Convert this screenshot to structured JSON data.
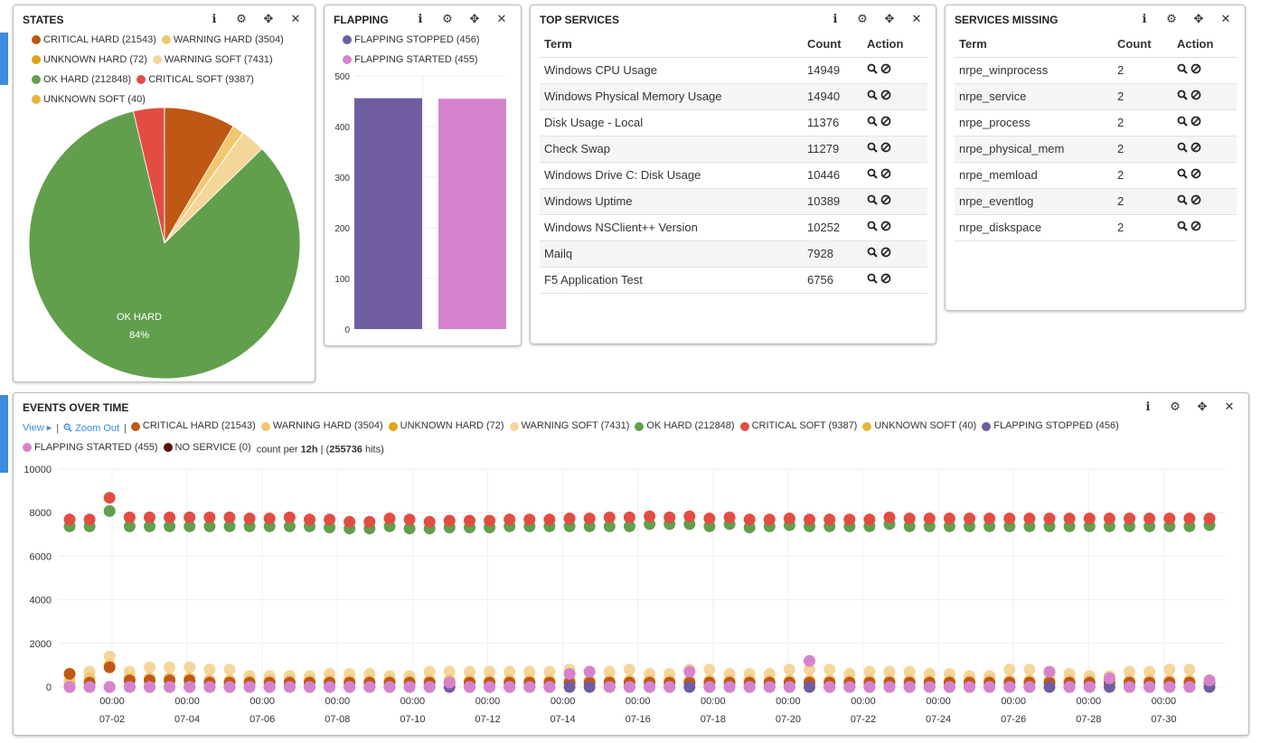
{
  "colors": {
    "critical_hard": "#bf5815",
    "warning_hard": "#f2c76f",
    "unknown_hard": "#e2a412",
    "warning_soft": "#f4d69a",
    "ok_hard": "#629f4d",
    "critical_soft": "#e24d42",
    "unknown_soft": "#e8b53b",
    "flapping_stopped": "#705da0",
    "flapping_started": "#d683ce",
    "no_service": "#58140c"
  },
  "states": {
    "title": "STATES",
    "legend": [
      {
        "label": "CRITICAL HARD (21543)",
        "color": "#bf5815"
      },
      {
        "label": "WARNING HARD (3504)",
        "color": "#f2c76f"
      },
      {
        "label": "UNKNOWN HARD (72)",
        "color": "#e2a412"
      },
      {
        "label": "WARNING SOFT (7431)",
        "color": "#f4d69a"
      },
      {
        "label": "OK HARD (212848)",
        "color": "#629f4d"
      },
      {
        "label": "CRITICAL SOFT (9387)",
        "color": "#e24d42"
      },
      {
        "label": "UNKNOWN SOFT (40)",
        "color": "#e8b53b"
      }
    ],
    "pie_label": "OK HARD",
    "pie_pct": "84%"
  },
  "flapping": {
    "title": "FLAPPING",
    "legend": [
      {
        "label": "FLAPPING STOPPED (456)",
        "color": "#705da0"
      },
      {
        "label": "FLAPPING STARTED (455)",
        "color": "#d683ce"
      }
    ]
  },
  "top_services": {
    "title": "TOP SERVICES",
    "columns": [
      "Term",
      "Count",
      "Action"
    ],
    "rows": [
      [
        "Windows CPU Usage",
        "14949"
      ],
      [
        "Windows Physical Memory Usage",
        "14940"
      ],
      [
        "Disk Usage - Local",
        "11376"
      ],
      [
        "Check Swap",
        "11279"
      ],
      [
        "Windows Drive C: Disk Usage",
        "10446"
      ],
      [
        "Windows Uptime",
        "10389"
      ],
      [
        "Windows NSClient++ Version",
        "10252"
      ],
      [
        "Mailq",
        "7928"
      ],
      [
        "F5 Application Test",
        "6756"
      ]
    ]
  },
  "services_missing": {
    "title": "SERVICES MISSING",
    "columns": [
      "Term",
      "Count",
      "Action"
    ],
    "rows": [
      [
        "nrpe_winprocess",
        "2"
      ],
      [
        "nrpe_service",
        "2"
      ],
      [
        "nrpe_process",
        "2"
      ],
      [
        "nrpe_physical_mem",
        "2"
      ],
      [
        "nrpe_memload",
        "2"
      ],
      [
        "nrpe_eventlog",
        "2"
      ],
      [
        "nrpe_diskspace",
        "2"
      ]
    ]
  },
  "events": {
    "title": "EVENTS OVER TIME",
    "view_label": "View ▸",
    "zoom_out_label": "Zoom Out",
    "legend": [
      {
        "label": "CRITICAL HARD (21543)",
        "color": "#bf5815"
      },
      {
        "label": "WARNING HARD (3504)",
        "color": "#f2c76f"
      },
      {
        "label": "UNKNOWN HARD (72)",
        "color": "#e2a412"
      },
      {
        "label": "WARNING SOFT (7431)",
        "color": "#f4d69a"
      },
      {
        "label": "OK HARD (212848)",
        "color": "#629f4d"
      },
      {
        "label": "CRITICAL SOFT (9387)",
        "color": "#e24d42"
      },
      {
        "label": "UNKNOWN SOFT (40)",
        "color": "#e8b53b"
      },
      {
        "label": "FLAPPING STOPPED (456)",
        "color": "#705da0"
      },
      {
        "label": "FLAPPING STARTED (455)",
        "color": "#d683ce"
      },
      {
        "label": "NO SERVICE (0)",
        "color": "#58140c"
      }
    ],
    "count_per_prefix": "count per ",
    "interval": "12h",
    "hits_prefix": " | (",
    "hits": "255736",
    "hits_suffix": " hits)"
  },
  "chart_data": [
    {
      "type": "pie",
      "categories": [
        "CRITICAL HARD",
        "WARNING HARD",
        "UNKNOWN HARD",
        "WARNING SOFT",
        "OK HARD",
        "CRITICAL SOFT",
        "UNKNOWN SOFT"
      ],
      "values": [
        21543,
        3504,
        72,
        7431,
        212848,
        9387,
        40
      ],
      "colors": [
        "#bf5815",
        "#f2c76f",
        "#e2a412",
        "#f4d69a",
        "#629f4d",
        "#e24d42",
        "#e8b53b"
      ]
    },
    {
      "type": "bar",
      "categories": [
        "FLAPPING STOPPED",
        "FLAPPING STARTED"
      ],
      "values": [
        456,
        455
      ],
      "colors": [
        "#705da0",
        "#d683ce"
      ],
      "ylim": [
        0,
        500
      ],
      "yticks": [
        0,
        100,
        200,
        300,
        400,
        500
      ]
    },
    {
      "type": "scatter",
      "x_labels": [
        "07-02",
        "07-04",
        "07-06",
        "07-08",
        "07-10",
        "07-12",
        "07-14",
        "07-16",
        "07-18",
        "07-20",
        "07-22",
        "07-24",
        "07-26",
        "07-28",
        "07-30"
      ],
      "x_time_label": "00:00",
      "ylim": [
        0,
        10000
      ],
      "yticks": [
        0,
        2000,
        4000,
        6000,
        8000,
        10000
      ],
      "grid": true,
      "points_per_series": 58,
      "series": [
        {
          "name": "OK HARD",
          "color": "#629f4d",
          "values": [
            7500,
            7500,
            8200,
            7500,
            7500,
            7500,
            7500,
            7500,
            7500,
            7500,
            7500,
            7500,
            7500,
            7450,
            7400,
            7400,
            7500,
            7400,
            7400,
            7450,
            7450,
            7450,
            7500,
            7500,
            7500,
            7500,
            7500,
            7500,
            7500,
            7600,
            7600,
            7600,
            7500,
            7600,
            7450,
            7500,
            7550,
            7500,
            7500,
            7500,
            7500,
            7600,
            7500,
            7500,
            7500,
            7500,
            7500,
            7500,
            7500,
            7500,
            7500,
            7500,
            7500,
            7500,
            7500,
            7500,
            7500,
            7550
          ]
        },
        {
          "name": "CRITICAL SOFT",
          "color": "#e24d42",
          "values": [
            7600,
            7600,
            8600,
            7700,
            7700,
            7700,
            7700,
            7700,
            7700,
            7650,
            7650,
            7700,
            7600,
            7600,
            7500,
            7500,
            7650,
            7600,
            7500,
            7550,
            7550,
            7550,
            7600,
            7600,
            7600,
            7650,
            7650,
            7700,
            7700,
            7750,
            7700,
            7750,
            7650,
            7700,
            7600,
            7600,
            7650,
            7600,
            7600,
            7600,
            7600,
            7700,
            7650,
            7650,
            7650,
            7650,
            7650,
            7650,
            7650,
            7650,
            7650,
            7650,
            7650,
            7650,
            7650,
            7650,
            7650,
            7650
          ]
        },
        {
          "name": "WARNING SOFT",
          "color": "#f4d69a",
          "values": [
            300,
            700,
            1400,
            700,
            900,
            900,
            900,
            800,
            800,
            500,
            500,
            500,
            500,
            600,
            600,
            600,
            500,
            500,
            700,
            700,
            700,
            700,
            700,
            700,
            700,
            800,
            700,
            700,
            800,
            600,
            600,
            800,
            800,
            600,
            600,
            600,
            800,
            800,
            800,
            600,
            700,
            700,
            700,
            600,
            600,
            500,
            500,
            800,
            800,
            600,
            600,
            500,
            500,
            700,
            700,
            800,
            800,
            300
          ]
        },
        {
          "name": "CRITICAL HARD",
          "color": "#bf5815",
          "values": [
            600,
            200,
            900,
            300,
            300,
            300,
            300,
            200,
            200,
            200,
            200,
            200,
            200,
            200,
            200,
            200,
            200,
            200,
            200,
            200,
            200,
            200,
            200,
            200,
            200,
            200,
            200,
            200,
            200,
            200,
            200,
            200,
            200,
            200,
            200,
            200,
            200,
            200,
            200,
            200,
            200,
            200,
            200,
            200,
            200,
            200,
            200,
            200,
            200,
            200,
            200,
            200,
            200,
            200,
            200,
            200,
            200,
            200
          ]
        },
        {
          "name": "WARNING HARD",
          "color": "#f2c76f",
          "values": [
            200,
            400,
            1000,
            400,
            400,
            400,
            400,
            300,
            300,
            300,
            300,
            300,
            300,
            300,
            300,
            300,
            300,
            300,
            300,
            300,
            300,
            300,
            300,
            300,
            300,
            300,
            300,
            300,
            300,
            300,
            300,
            300,
            300,
            300,
            300,
            300,
            300,
            300,
            300,
            300,
            300,
            300,
            300,
            300,
            300,
            300,
            300,
            300,
            300,
            300,
            300,
            300,
            300,
            300,
            300,
            300,
            300,
            300
          ]
        },
        {
          "name": "FLAPPING STARTED",
          "color": "#d683ce",
          "values": [
            0,
            0,
            0,
            0,
            0,
            0,
            0,
            0,
            0,
            0,
            0,
            0,
            0,
            0,
            0,
            0,
            0,
            0,
            0,
            200,
            0,
            0,
            0,
            0,
            0,
            600,
            700,
            0,
            0,
            0,
            0,
            700,
            0,
            0,
            0,
            0,
            0,
            1200,
            0,
            0,
            0,
            0,
            0,
            0,
            0,
            0,
            0,
            0,
            0,
            700,
            0,
            0,
            400,
            0,
            0,
            0,
            0,
            300
          ]
        },
        {
          "name": "FLAPPING STOPPED",
          "color": "#705da0",
          "values": [
            0,
            0,
            0,
            0,
            0,
            0,
            0,
            0,
            0,
            0,
            0,
            0,
            0,
            0,
            0,
            0,
            0,
            0,
            0,
            0,
            0,
            0,
            0,
            0,
            0,
            0,
            0,
            0,
            0,
            0,
            0,
            0,
            0,
            0,
            0,
            0,
            0,
            0,
            0,
            0,
            0,
            0,
            0,
            0,
            0,
            0,
            0,
            0,
            0,
            0,
            0,
            0,
            0,
            0,
            0,
            0,
            0,
            0
          ]
        }
      ]
    }
  ]
}
